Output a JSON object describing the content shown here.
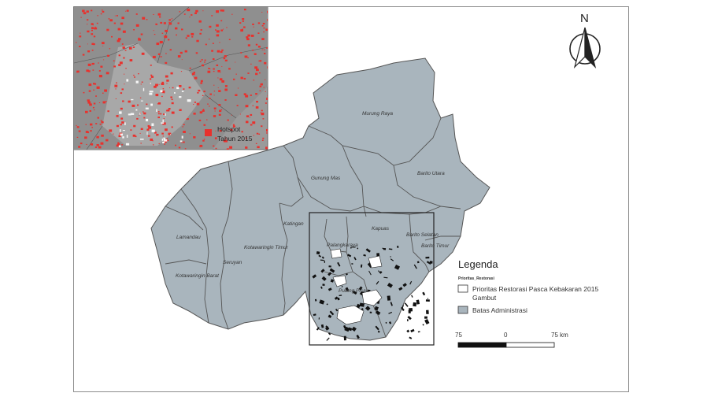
{
  "regions": [
    {
      "label": "Murung Raya"
    },
    {
      "label": "Barito Utara"
    },
    {
      "label": "Gunung Mas"
    },
    {
      "label": "Katingan"
    },
    {
      "label": "Kapuas"
    },
    {
      "label": "Barito Selatan"
    },
    {
      "label": "Barito Timur"
    },
    {
      "label": "Palangkaraya"
    },
    {
      "label": "Pulang Pisau"
    },
    {
      "label": "Lamandau"
    },
    {
      "label": "Seruyan"
    },
    {
      "label": "Kotawaringin Timur"
    },
    {
      "label": "Kotawaringin Barat"
    }
  ],
  "inset": {
    "legend_line1": "Hotspot",
    "legend_line2": "Tahun 2015",
    "hotspot_color": "#e8312d"
  },
  "legend": {
    "title": "Legenda",
    "subtitle": "Prioritas_Restorasi",
    "items": [
      {
        "label": "Prioritas Restorasi Pasca Kebakaran 2015",
        "color": "#ffffff"
      },
      {
        "label": "Gambut",
        "color": "#ffffff"
      },
      {
        "label": "Batas Administrasi",
        "color": "#a9b5bd"
      }
    ]
  },
  "scale": {
    "left": "75",
    "mid": "0",
    "right": "75 km"
  },
  "north": {
    "label": "N",
    "icon": "north-arrow-icon"
  },
  "colors": {
    "admin_fill": "#a9b5bd",
    "admin_stroke": "#555555",
    "inset_bg": "#9a9a9a",
    "peat": "#111111"
  }
}
